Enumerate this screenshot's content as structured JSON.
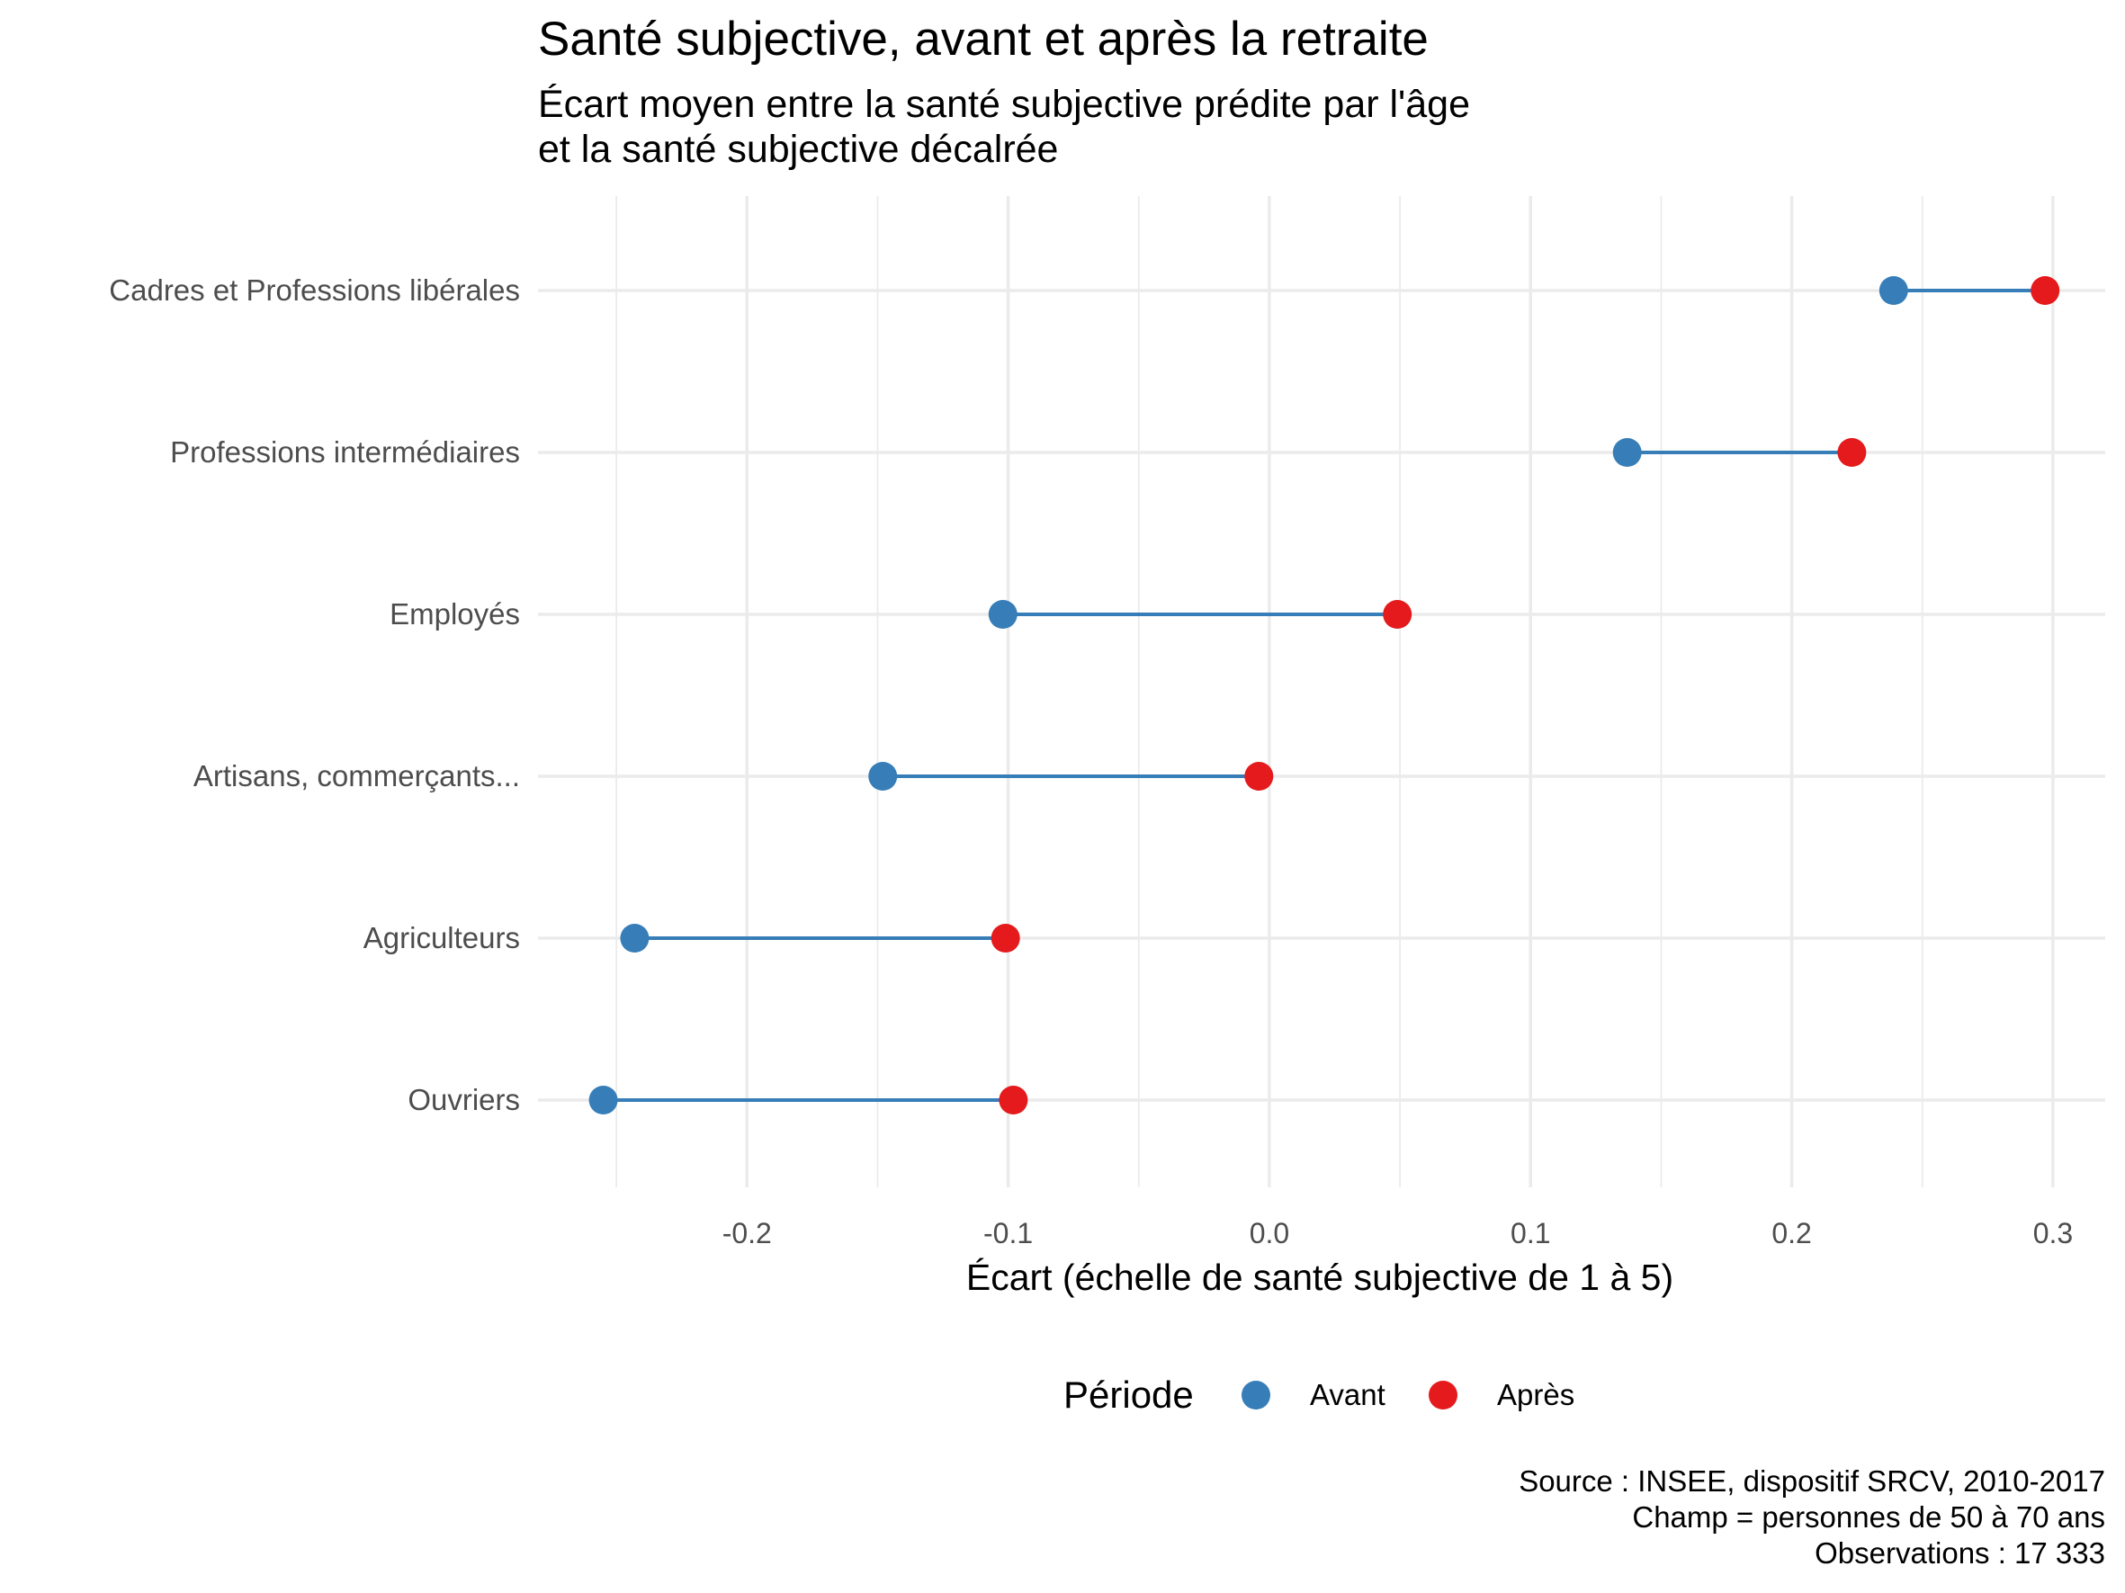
{
  "chart_data": {
    "type": "dumbbell",
    "title": "Santé subjective, avant et après la retraite",
    "subtitle_lines": [
      "Écart moyen entre la santé subjective prédite par l'âge",
      "et la santé subjective décalrée"
    ],
    "xlabel": "Écart (échelle de santé subjective de 1 à 5)",
    "ylabel": "",
    "xlim": [
      -0.28,
      0.32
    ],
    "x_ticks": [
      -0.2,
      -0.1,
      0.0,
      0.1,
      0.2,
      0.3
    ],
    "x_tick_labels": [
      "-0.2",
      "-0.1",
      "0.0",
      "0.1",
      "0.2",
      "0.3"
    ],
    "grid": true,
    "categories": [
      "Cadres et Professions libérales",
      "Professions intermédiaires",
      "Employés",
      "Artisans, commerçants...",
      "Agriculteurs",
      "Ouvriers"
    ],
    "series": [
      {
        "name": "Avant",
        "color": "#377eb8",
        "values": [
          0.239,
          0.137,
          -0.102,
          -0.148,
          -0.243,
          -0.255
        ]
      },
      {
        "name": "Après",
        "color": "#e41a1c",
        "values": [
          0.297,
          0.223,
          0.049,
          -0.004,
          -0.101,
          -0.098
        ]
      }
    ],
    "segment_color": "#377eb8",
    "legend": {
      "title": "Période",
      "position": "bottom",
      "items": [
        "Avant",
        "Après"
      ]
    },
    "caption_lines": [
      "Source : INSEE, dispositif SRCV, 2010-2017",
      "Champ = personnes de 50 à 70 ans",
      "Observations : 17 333"
    ]
  }
}
